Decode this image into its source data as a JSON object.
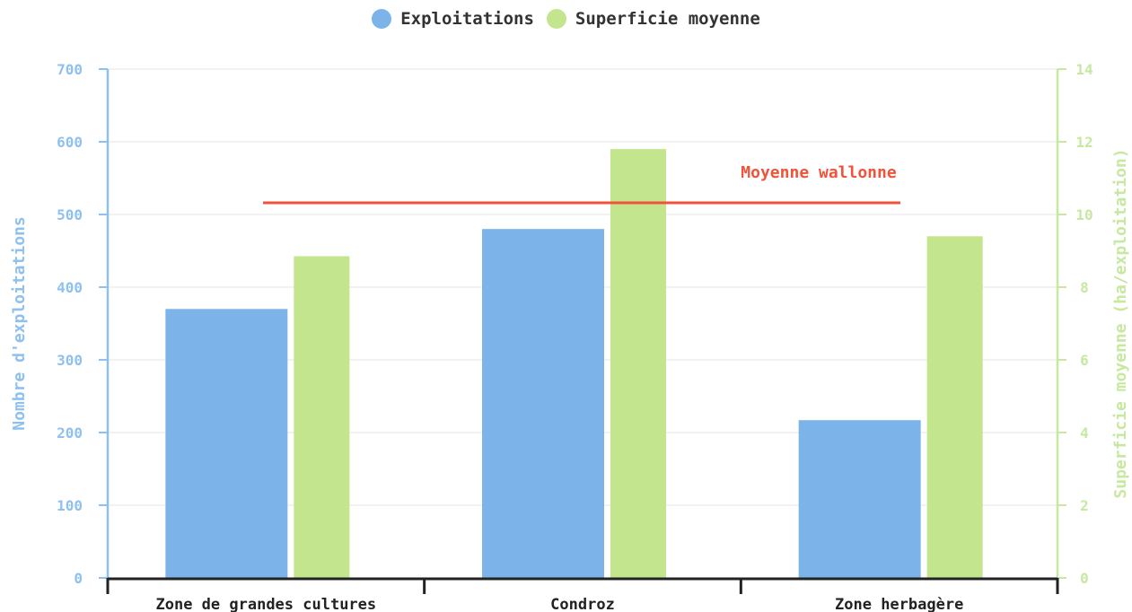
{
  "colors": {
    "exploitations": "#7cb4ea",
    "superficie": "#c2e58d",
    "average_line": "#f0533a",
    "left_axis": "#8fc1f0",
    "right_axis": "#c7e8a0",
    "grid": "#e6e6e6",
    "x_axis": "#222222"
  },
  "chart_data": {
    "type": "bar",
    "categories": [
      "Zone de grandes cultures",
      "Condroz",
      "Zone herbagère"
    ],
    "series": [
      {
        "name": "Exploitations",
        "axis": "left",
        "values": [
          370,
          480,
          217
        ]
      },
      {
        "name": "Superficie moyenne",
        "axis": "right",
        "values": [
          8.85,
          11.8,
          9.4
        ]
      }
    ],
    "reference_line": {
      "label": "Moyenne wallonne",
      "axis": "left",
      "value": 516
    },
    "ylabel": "Nombre d'exploitations",
    "ylabel_right": "Superficie moyenne (ha/exploitation)",
    "ylim": [
      0,
      700
    ],
    "ylim_right": [
      0,
      14
    ],
    "yticks": [
      0,
      100,
      200,
      300,
      400,
      500,
      600,
      700
    ],
    "yticks_right": [
      0,
      2,
      4,
      6,
      8,
      10,
      12,
      14
    ],
    "grid": true,
    "legend_position": "top-center"
  }
}
